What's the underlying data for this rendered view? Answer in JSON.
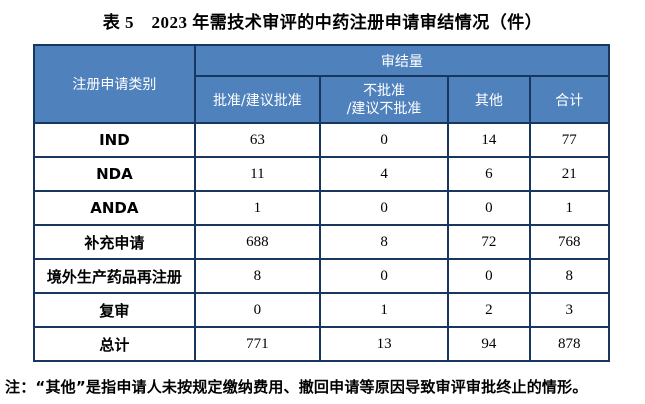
{
  "title": "表 5　2023 年需技术审评的中药注册申请审结情况（件）",
  "colors": {
    "header_bg": "#4f81bd",
    "header_text": "#ffffff",
    "border": "#17375e"
  },
  "table": {
    "header": {
      "category_label": "注册申请类别",
      "group_label": "审结量",
      "col_approved": "批准/建议批准",
      "col_not_approved": "不批准\n/建议不批准",
      "col_other": "其他",
      "col_total": "合计"
    },
    "rows": [
      {
        "label": "IND",
        "values": [
          "63",
          "0",
          "14",
          "77"
        ]
      },
      {
        "label": "NDA",
        "values": [
          "11",
          "4",
          "6",
          "21"
        ]
      },
      {
        "label": "ANDA",
        "values": [
          "1",
          "0",
          "0",
          "1"
        ]
      },
      {
        "label": "补充申请",
        "values": [
          "688",
          "8",
          "72",
          "768"
        ]
      },
      {
        "label": "境外生产药品再注册",
        "values": [
          "8",
          "0",
          "0",
          "8"
        ]
      },
      {
        "label": "复审",
        "values": [
          "0",
          "1",
          "2",
          "3"
        ]
      },
      {
        "label": "总计",
        "values": [
          "771",
          "13",
          "94",
          "878"
        ]
      }
    ]
  },
  "note": "注：“其他”是指申请人未按规定缴纳费用、撤回申请等原因导致审评审批终止的情形。"
}
